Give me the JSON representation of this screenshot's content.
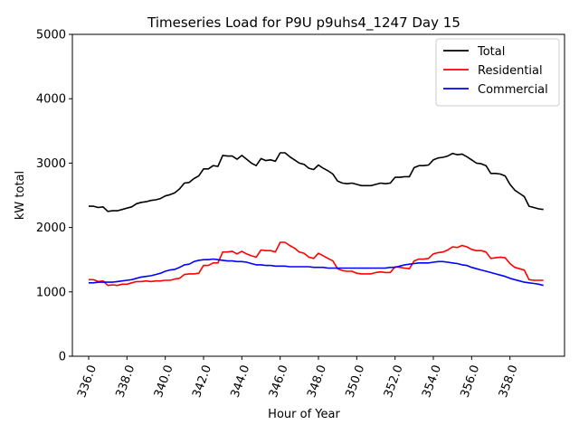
{
  "chart_data": {
    "type": "line",
    "title": "Timeseries Load for P9U p9uhs4_1247  Day 15",
    "xlabel": "Hour of Year",
    "ylabel": "kW total",
    "xlim": [
      335.15,
      360.85
    ],
    "ylim": [
      0,
      5000
    ],
    "xticks": [
      336.0,
      338.0,
      340.0,
      342.0,
      344.0,
      346.0,
      348.0,
      350.0,
      352.0,
      354.0,
      356.0,
      358.0
    ],
    "xtick_labels": [
      "336.0",
      "338.0",
      "340.0",
      "342.0",
      "344.0",
      "346.0",
      "348.0",
      "350.0",
      "352.0",
      "354.0",
      "356.0",
      "358.0"
    ],
    "yticks": [
      0,
      1000,
      2000,
      3000,
      4000,
      5000
    ],
    "ytick_labels": [
      "0",
      "1000",
      "2000",
      "3000",
      "4000",
      "5000"
    ],
    "legend_position": "top-right",
    "grid": false,
    "x": [
      336.0,
      336.25,
      336.5,
      336.75,
      337.0,
      337.25,
      337.5,
      337.75,
      338.0,
      338.25,
      338.5,
      338.75,
      339.0,
      339.25,
      339.5,
      339.75,
      340.0,
      340.25,
      340.5,
      340.75,
      341.0,
      341.25,
      341.5,
      341.75,
      342.0,
      342.25,
      342.5,
      342.75,
      343.0,
      343.25,
      343.5,
      343.75,
      344.0,
      344.25,
      344.5,
      344.75,
      345.0,
      345.25,
      345.5,
      345.75,
      346.0,
      346.25,
      346.5,
      346.75,
      347.0,
      347.25,
      347.5,
      347.75,
      348.0,
      348.25,
      348.5,
      348.75,
      349.0,
      349.25,
      349.5,
      349.75,
      350.0,
      350.25,
      350.5,
      350.75,
      351.0,
      351.25,
      351.5,
      351.75,
      352.0,
      352.25,
      352.5,
      352.75,
      353.0,
      353.25,
      353.5,
      353.75,
      354.0,
      354.25,
      354.5,
      354.75,
      355.0,
      355.25,
      355.5,
      355.75,
      356.0,
      356.25,
      356.5,
      356.75,
      357.0,
      357.25,
      357.5,
      357.75,
      358.0,
      358.25,
      358.5,
      358.75,
      359.0,
      359.25,
      359.5,
      359.75
    ],
    "series": [
      {
        "name": "Total",
        "color": "#000000",
        "values": [
          2330,
          2330,
          2310,
          2320,
          2250,
          2260,
          2260,
          2280,
          2300,
          2320,
          2370,
          2390,
          2400,
          2420,
          2430,
          2450,
          2490,
          2510,
          2540,
          2600,
          2690,
          2700,
          2760,
          2800,
          2910,
          2910,
          2960,
          2950,
          3120,
          3110,
          3110,
          3060,
          3120,
          3060,
          3000,
          2960,
          3070,
          3040,
          3050,
          3030,
          3160,
          3160,
          3100,
          3050,
          3000,
          2980,
          2920,
          2900,
          2970,
          2920,
          2880,
          2830,
          2720,
          2690,
          2680,
          2690,
          2670,
          2650,
          2650,
          2650,
          2670,
          2690,
          2680,
          2690,
          2780,
          2780,
          2790,
          2790,
          2930,
          2960,
          2960,
          2970,
          3050,
          3080,
          3090,
          3110,
          3150,
          3130,
          3140,
          3100,
          3050,
          3000,
          2990,
          2960,
          2840,
          2840,
          2830,
          2800,
          2670,
          2580,
          2530,
          2480,
          2330,
          2310,
          2290,
          2280
        ]
      },
      {
        "name": "Residential",
        "color": "#ff0000",
        "values": [
          1190,
          1190,
          1160,
          1170,
          1100,
          1110,
          1100,
          1120,
          1120,
          1140,
          1160,
          1160,
          1170,
          1160,
          1170,
          1170,
          1180,
          1180,
          1200,
          1210,
          1270,
          1280,
          1280,
          1290,
          1410,
          1410,
          1450,
          1450,
          1620,
          1620,
          1630,
          1590,
          1630,
          1590,
          1560,
          1540,
          1650,
          1640,
          1640,
          1620,
          1770,
          1770,
          1720,
          1680,
          1620,
          1600,
          1540,
          1520,
          1600,
          1560,
          1520,
          1480,
          1360,
          1330,
          1320,
          1320,
          1290,
          1280,
          1280,
          1280,
          1300,
          1310,
          1300,
          1300,
          1390,
          1380,
          1370,
          1360,
          1480,
          1510,
          1510,
          1520,
          1590,
          1610,
          1620,
          1650,
          1700,
          1690,
          1720,
          1700,
          1660,
          1640,
          1640,
          1620,
          1520,
          1530,
          1540,
          1530,
          1440,
          1380,
          1360,
          1340,
          1190,
          1180,
          1180,
          1180
        ]
      },
      {
        "name": "Commercial",
        "color": "#0000ff",
        "values": [
          1140,
          1140,
          1150,
          1150,
          1150,
          1150,
          1160,
          1170,
          1180,
          1190,
          1210,
          1230,
          1240,
          1250,
          1270,
          1290,
          1320,
          1340,
          1350,
          1380,
          1420,
          1430,
          1470,
          1490,
          1500,
          1500,
          1510,
          1500,
          1490,
          1480,
          1480,
          1470,
          1470,
          1460,
          1440,
          1420,
          1420,
          1410,
          1410,
          1400,
          1400,
          1400,
          1390,
          1390,
          1390,
          1390,
          1390,
          1380,
          1380,
          1380,
          1370,
          1370,
          1370,
          1370,
          1370,
          1370,
          1370,
          1370,
          1370,
          1370,
          1370,
          1370,
          1370,
          1380,
          1380,
          1400,
          1420,
          1430,
          1440,
          1450,
          1450,
          1450,
          1460,
          1470,
          1470,
          1460,
          1450,
          1440,
          1420,
          1410,
          1380,
          1360,
          1340,
          1320,
          1300,
          1280,
          1260,
          1240,
          1210,
          1190,
          1170,
          1150,
          1140,
          1130,
          1120,
          1100
        ]
      }
    ]
  }
}
